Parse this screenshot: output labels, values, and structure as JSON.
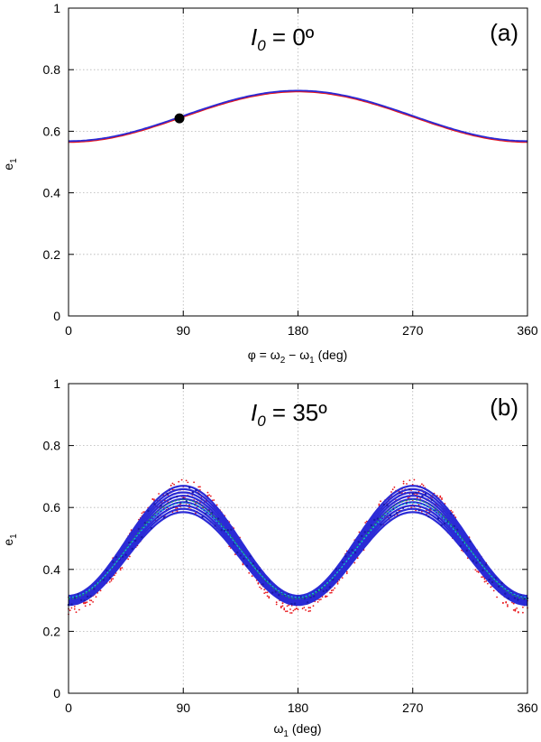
{
  "chart_data": [
    {
      "type": "line",
      "panel_label": "(a)",
      "annotation": {
        "symbol": "I",
        "subscript": "0",
        "rest": " = 0º"
      },
      "xlabel": {
        "parts": [
          "φ = ω",
          "2",
          " − ω",
          "1",
          " (deg)"
        ]
      },
      "ylabel": {
        "parts": [
          "e",
          "1"
        ]
      },
      "xlim": [
        0,
        360
      ],
      "ylim": [
        0,
        1
      ],
      "xticks": [
        "0",
        "90",
        "180",
        "270",
        "360"
      ],
      "yticks": [
        "0",
        "0.2",
        "0.4",
        "0.6",
        "0.8",
        "1"
      ],
      "grid": true,
      "curve_model": {
        "mean": 0.65,
        "amplitude": -0.082,
        "harmonic": 1
      },
      "series": [
        {
          "name": "red",
          "color": "#e8161b",
          "offset": -0.003
        },
        {
          "name": "blue",
          "color": "#2b2bd6",
          "offset": 0.0
        }
      ],
      "marker": {
        "x": 87,
        "y": 0.642,
        "color": "#000000"
      }
    },
    {
      "type": "line",
      "panel_label": "(b)",
      "annotation": {
        "symbol": "I",
        "subscript": "0",
        "rest": " = 35º"
      },
      "xlabel": {
        "parts": [
          "ω",
          "1",
          " (deg)"
        ]
      },
      "ylabel": {
        "parts": [
          "e",
          "1"
        ]
      },
      "xlim": [
        0,
        360
      ],
      "ylim": [
        0,
        1
      ],
      "xticks": [
        "0",
        "90",
        "180",
        "270",
        "360"
      ],
      "yticks": [
        "0",
        "0.2",
        "0.4",
        "0.6",
        "0.8",
        "1"
      ],
      "grid": true,
      "curve_model": {
        "mean": 0.46,
        "amplitude": -0.17,
        "harmonic": 2
      },
      "series": [
        {
          "name": "red scatter",
          "color": "#e8161b",
          "style": "dots",
          "band": [
            0.255,
            0.69
          ]
        },
        {
          "name": "blue family",
          "color": "#2b2bd6",
          "style": "lines",
          "band": [
            0.285,
            0.67
          ]
        },
        {
          "name": "green",
          "color": "#18a05a",
          "style": "lines",
          "band": [
            0.305,
            0.625
          ]
        },
        {
          "name": "cyan",
          "color": "#10c8d8",
          "style": "lines",
          "band": [
            0.31,
            0.615
          ]
        }
      ]
    }
  ]
}
